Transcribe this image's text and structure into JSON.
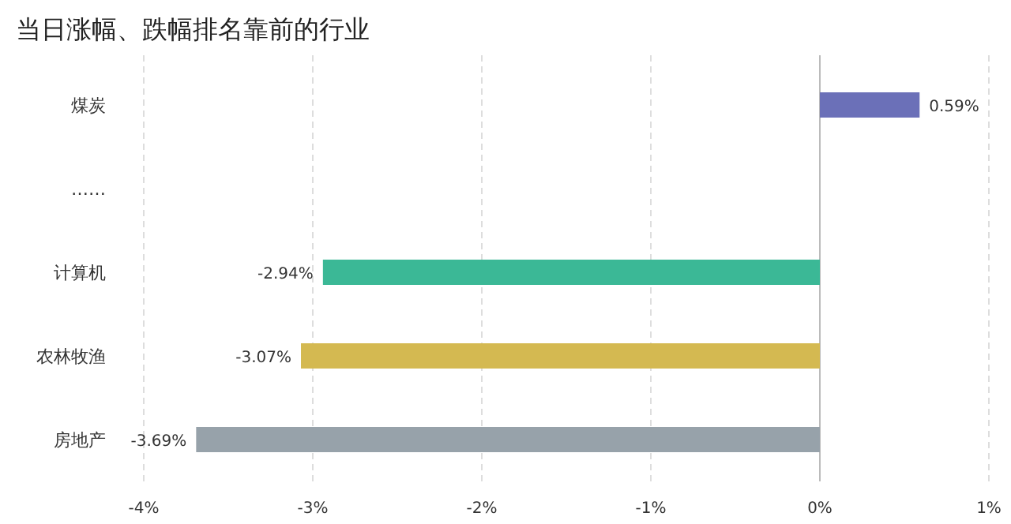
{
  "chart_data": {
    "type": "bar",
    "orientation": "horizontal",
    "title": "当日涨幅、跌幅排名靠前的行业",
    "categories": [
      "煤炭",
      "……",
      "计算机",
      "农林牧渔",
      "房地产"
    ],
    "values": [
      0.59,
      null,
      -2.94,
      -3.07,
      -3.69
    ],
    "colors": [
      "#6b70b8",
      null,
      "#3bb896",
      "#d4b951",
      "#97a2aa"
    ],
    "value_labels": [
      "0.59%",
      null,
      "-2.94%",
      "-3.07%",
      "-3.69%"
    ],
    "xlim": [
      -4,
      1
    ],
    "xticks": [
      {
        "value": -4,
        "label": "-4%"
      },
      {
        "value": -3,
        "label": "-3%"
      },
      {
        "value": -2,
        "label": "-2%"
      },
      {
        "value": -1,
        "label": "-1%"
      },
      {
        "value": 0,
        "label": "0%"
      },
      {
        "value": 1,
        "label": "1%"
      }
    ],
    "grid": "x"
  }
}
